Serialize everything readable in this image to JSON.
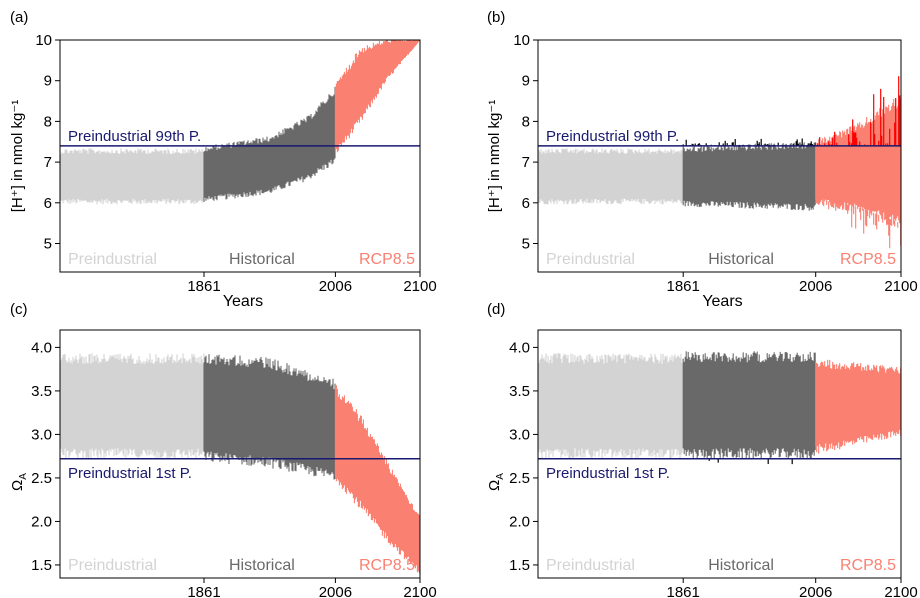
{
  "colors": {
    "preindustrial": "#d3d3d3",
    "historical": "#696969",
    "rcp85": "#fa8072",
    "extreme_red": "#ff0000",
    "extreme_black": "#000000",
    "threshold_line": "#191970",
    "axis": "#000000"
  },
  "chart_data": [
    {
      "type": "area",
      "panel": "(a)",
      "ylabel": "[H⁺] in nmol kg⁻¹",
      "xlabel": "Years",
      "xticks": [
        "1861",
        "2006",
        "2100"
      ],
      "yticks": [
        "5",
        "6",
        "7",
        "8",
        "9",
        "10"
      ],
      "ylim": [
        4.3,
        10
      ],
      "period_labels": [
        "Preindustrial",
        "Historical",
        "RCP8.5"
      ],
      "threshold": {
        "label": "Preindustrial 99th P.",
        "value": 7.4
      },
      "series": [
        {
          "period": "Preindustrial",
          "x": [
            0,
            0.5,
            1
          ],
          "low": [
            6.0,
            6.0,
            6.0
          ],
          "high": [
            7.3,
            7.3,
            7.3
          ]
        },
        {
          "period": "Historical",
          "x": [
            0,
            0.5,
            0.8,
            1
          ],
          "low": [
            6.05,
            6.25,
            6.6,
            7.0
          ],
          "high": [
            7.35,
            7.6,
            8.1,
            8.8
          ]
        },
        {
          "period": "RCP8.5",
          "x": [
            0,
            0.3,
            0.6,
            1
          ],
          "low": [
            7.2,
            8.0,
            9.0,
            10.0
          ],
          "high": [
            8.9,
            9.8,
            10.0,
            10.0
          ]
        }
      ]
    },
    {
      "type": "area",
      "panel": "(b)",
      "ylabel": "[H⁺] in nmol kg⁻¹",
      "xlabel": "Years",
      "xticks": [
        "1861",
        "2006",
        "2100"
      ],
      "yticks": [
        "5",
        "6",
        "7",
        "8",
        "9",
        "10"
      ],
      "ylim": [
        4.3,
        10
      ],
      "period_labels": [
        "Preindustrial",
        "Historical",
        "RCP8.5"
      ],
      "threshold": {
        "label": "Preindustrial 99th P.",
        "value": 7.4
      },
      "series": [
        {
          "period": "Preindustrial",
          "x": [
            0,
            0.5,
            1
          ],
          "low": [
            6.0,
            6.0,
            6.0
          ],
          "high": [
            7.3,
            7.3,
            7.3
          ]
        },
        {
          "period": "Historical",
          "x": [
            0,
            0.5,
            1
          ],
          "low": [
            5.95,
            5.9,
            5.85
          ],
          "high": [
            7.35,
            7.4,
            7.45
          ]
        },
        {
          "period": "RCP8.5",
          "x": [
            0,
            0.5,
            1
          ],
          "low": [
            6.0,
            5.8,
            5.4
          ],
          "high": [
            7.5,
            7.9,
            8.6
          ]
        }
      ],
      "extremes_above_threshold": [
        {
          "period": "Historical",
          "color": "black",
          "range": [
            7.4,
            7.75
          ]
        },
        {
          "period": "RCP8.5",
          "color": "red",
          "range": [
            7.4,
            9.7
          ]
        }
      ]
    },
    {
      "type": "area",
      "panel": "(c)",
      "ylabel": "ΩA",
      "xlabel": "Years",
      "xticks": [
        "1861",
        "2006",
        "2100"
      ],
      "yticks": [
        "1.5",
        "2.0",
        "2.5",
        "3.0",
        "3.5",
        "4.0"
      ],
      "ylim": [
        1.35,
        4.2
      ],
      "period_labels": [
        "Preindustrial",
        "Historical",
        "RCP8.5"
      ],
      "threshold": {
        "label": "Preindustrial 1st P.",
        "value": 2.72
      },
      "series": [
        {
          "period": "Preindustrial",
          "x": [
            0,
            0.5,
            1
          ],
          "low": [
            2.75,
            2.75,
            2.75
          ],
          "high": [
            3.9,
            3.9,
            3.9
          ]
        },
        {
          "period": "Historical",
          "x": [
            0,
            0.5,
            1
          ],
          "low": [
            2.72,
            2.65,
            2.5
          ],
          "high": [
            3.9,
            3.85,
            3.6
          ]
        },
        {
          "period": "RCP8.5",
          "x": [
            0,
            0.3,
            0.6,
            1
          ],
          "low": [
            2.5,
            2.15,
            1.8,
            1.4
          ],
          "high": [
            3.55,
            3.2,
            2.7,
            2.05
          ]
        }
      ]
    },
    {
      "type": "area",
      "panel": "(d)",
      "ylabel": "ΩA",
      "xlabel": "Years",
      "xticks": [
        "1861",
        "2006",
        "2100"
      ],
      "yticks": [
        "1.5",
        "2.0",
        "2.5",
        "3.0",
        "3.5",
        "4.0"
      ],
      "ylim": [
        1.35,
        4.2
      ],
      "period_labels": [
        "Preindustrial",
        "Historical",
        "RCP8.5"
      ],
      "threshold": {
        "label": "Preindustrial 1st P.",
        "value": 2.72
      },
      "series": [
        {
          "period": "Preindustrial",
          "x": [
            0,
            0.5,
            1
          ],
          "low": [
            2.75,
            2.75,
            2.75
          ],
          "high": [
            3.9,
            3.9,
            3.9
          ]
        },
        {
          "period": "Historical",
          "x": [
            0,
            0.5,
            1
          ],
          "low": [
            2.75,
            2.75,
            2.75
          ],
          "high": [
            3.92,
            3.92,
            3.92
          ]
        },
        {
          "period": "RCP8.5",
          "x": [
            0,
            0.5,
            1
          ],
          "low": [
            2.8,
            2.9,
            3.0
          ],
          "high": [
            3.85,
            3.8,
            3.75
          ]
        }
      ],
      "extremes_below_threshold": [
        {
          "period": "Historical",
          "color": "black",
          "range": [
            2.65,
            2.72
          ]
        }
      ]
    }
  ]
}
